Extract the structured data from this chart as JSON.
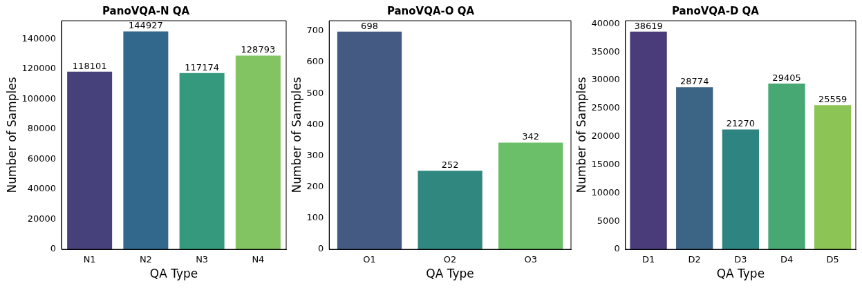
{
  "chart_data": [
    {
      "type": "bar",
      "title": "PanoVQA-N QA",
      "xlabel": "QA Type",
      "ylabel": "Number of Samples",
      "categories": [
        "N1",
        "N2",
        "N3",
        "N4"
      ],
      "values": [
        118101,
        144927,
        117174,
        128793
      ],
      "colors": [
        "#46407b",
        "#33688d",
        "#35997d",
        "#82c362"
      ],
      "ylim": [
        0,
        152000
      ],
      "yticks": [
        0,
        20000,
        40000,
        60000,
        80000,
        100000,
        120000,
        140000
      ],
      "data_labels": true,
      "grid": false,
      "legend": false
    },
    {
      "type": "bar",
      "title": "PanoVQA-O QA",
      "xlabel": "QA Type",
      "ylabel": "Number of Samples",
      "categories": [
        "O1",
        "O2",
        "O3"
      ],
      "values": [
        698,
        252,
        342
      ],
      "colors": [
        "#455a83",
        "#2f877f",
        "#6abf68"
      ],
      "ylim": [
        0,
        733
      ],
      "yticks": [
        0,
        100,
        200,
        300,
        400,
        500,
        600,
        700
      ],
      "data_labels": true,
      "grid": false,
      "legend": false
    },
    {
      "type": "bar",
      "title": "PanoVQA-D QA",
      "xlabel": "QA Type",
      "ylabel": "Number of Samples",
      "categories": [
        "D1",
        "D2",
        "D3",
        "D4",
        "D5"
      ],
      "values": [
        38619,
        28774,
        21270,
        29405,
        25559
      ],
      "colors": [
        "#4a3c7a",
        "#3c6585",
        "#2e8480",
        "#48a874",
        "#8dc456"
      ],
      "ylim": [
        0,
        40550
      ],
      "yticks": [
        0,
        5000,
        10000,
        15000,
        20000,
        25000,
        30000,
        35000,
        40000
      ],
      "data_labels": true,
      "grid": false,
      "legend": false
    }
  ]
}
